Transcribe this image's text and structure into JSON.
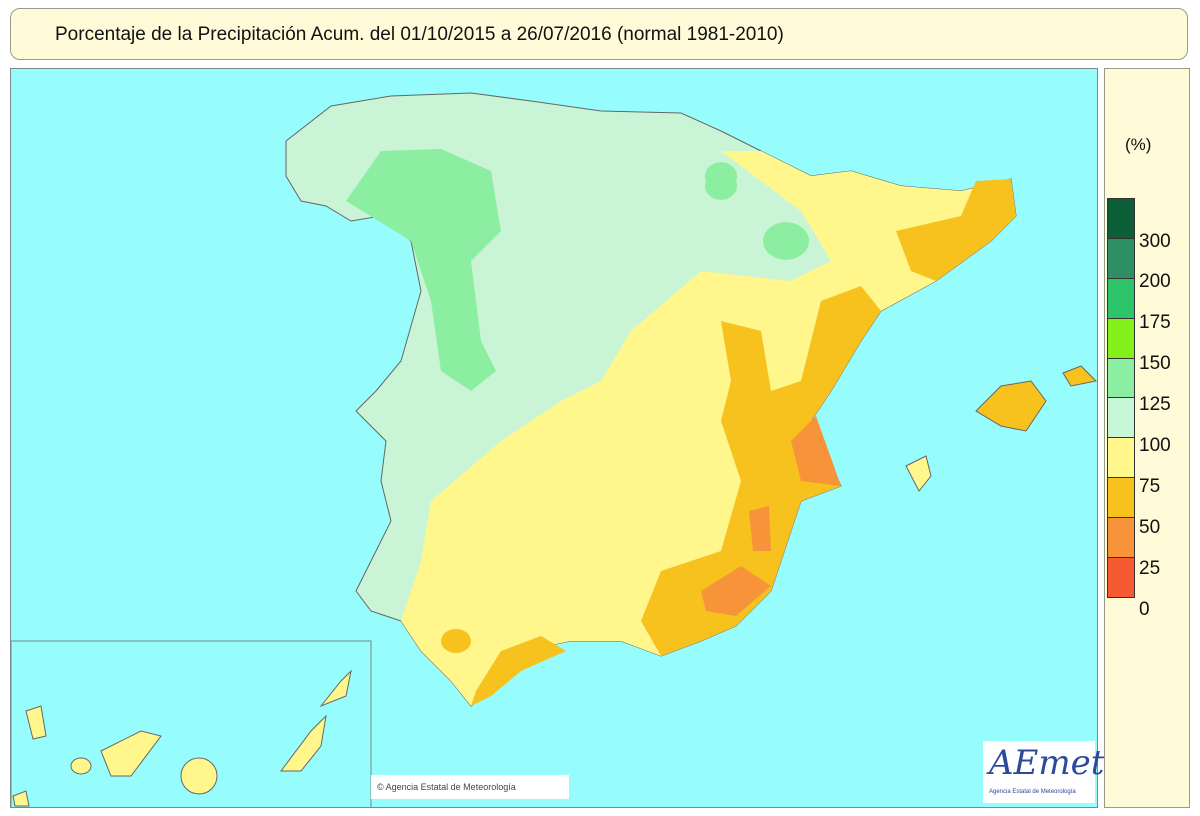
{
  "title": "Porcentaje de la Precipitación Acum. del 01/10/2015 a  26/07/2016  (normal 1981-2010)",
  "legend": {
    "unit": "(%)",
    "colors": [
      "#0b5e36",
      "#2e8f64",
      "#2ec46a",
      "#84f01c",
      "#8ceea0",
      "#c8f6d8",
      "#fff68c",
      "#f7c21e",
      "#f7943a",
      "#f55a32"
    ],
    "labels": [
      "300",
      "200",
      "175",
      "150",
      "125",
      "100",
      "75",
      "50",
      "25",
      "0"
    ]
  },
  "copyright": "© Agencia Estatal de Meteorología",
  "logo": {
    "text": "AEmet",
    "subtitle": "Agencia Estatal de Meteorología"
  }
}
